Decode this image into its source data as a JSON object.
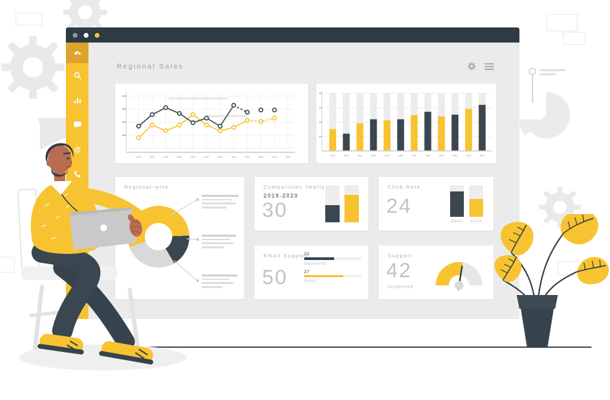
{
  "header": {
    "title": "Regional Sales"
  },
  "window": {
    "controls": [
      {
        "name": "dot-gray",
        "color": "#8F969C"
      },
      {
        "name": "dot-white",
        "color": "#FFFFFF"
      },
      {
        "name": "dot-yellow",
        "color": "#F7C331"
      }
    ]
  },
  "sidebar": {
    "items": [
      {
        "icon": "dashboard-icon",
        "active": true
      },
      {
        "icon": "search-icon",
        "active": false
      },
      {
        "icon": "bar-chart-icon",
        "active": false
      },
      {
        "icon": "chat-icon",
        "active": false
      },
      {
        "icon": "at-icon",
        "active": false
      },
      {
        "icon": "phone-icon",
        "active": false
      },
      {
        "icon": "mail-icon",
        "active": false
      }
    ]
  },
  "panels": {
    "regional_wise": {
      "title": "Regional-wise"
    },
    "comparison": {
      "title": "Comparision Yearly",
      "subtitle": "2019-2020",
      "value": "30"
    },
    "click_rate": {
      "title": "Click Rate",
      "value": "24",
      "labels": [
        "Open",
        "Click"
      ]
    },
    "email_support": {
      "title": "Email Support",
      "value": "50",
      "rows": [
        {
          "value": "23",
          "label": "Delivered"
        },
        {
          "value": "27",
          "label": "Send"
        }
      ]
    },
    "support": {
      "title": "Support",
      "value": "42",
      "subtitle": "Unopened"
    }
  },
  "chart_data": [
    {
      "id": "regional-sales-line",
      "type": "line",
      "x_tick_count": 12,
      "ylim": [
        0,
        4.5
      ],
      "grid": true,
      "series": [
        {
          "name": "series-dark",
          "color": "#3A4750",
          "values": [
            1.9,
            2.9,
            3.5,
            3.0,
            2.2,
            2.6,
            1.9,
            3.7,
            3.1,
            3.3,
            3.3
          ]
        },
        {
          "name": "series-yellow",
          "color": "#F7C331",
          "values": [
            0.9,
            2.0,
            1.5,
            2.0,
            2.9,
            2.0,
            1.5,
            1.8,
            2.4,
            2.3,
            2.6
          ]
        }
      ]
    },
    {
      "id": "monthly-bars",
      "type": "bar",
      "ylim": [
        0,
        100
      ],
      "values": [
        38,
        30,
        48,
        55,
        53,
        55,
        62,
        68,
        60,
        63,
        73,
        80
      ],
      "alternating_colors": [
        "#F7C331",
        "#3A4750"
      ],
      "track_color": "#ECECEC"
    },
    {
      "id": "regional-wise-donut",
      "type": "pie",
      "donut": true,
      "start_angle_deg": 250,
      "slices": [
        {
          "color": "#F7C331",
          "value": 55
        },
        {
          "color": "#3A4750",
          "value": 17
        },
        {
          "color": "#D9D9D9",
          "value": 28
        }
      ]
    },
    {
      "id": "comparison-yearly-bars",
      "type": "bar",
      "categories": [
        "2019",
        "2020"
      ],
      "values": [
        47,
        74
      ],
      "colors": [
        "#3A4750",
        "#F7C331"
      ],
      "ylim": [
        0,
        100
      ]
    },
    {
      "id": "click-rate-bars",
      "type": "bar",
      "categories": [
        "Open",
        "Click"
      ],
      "values": [
        81,
        57
      ],
      "colors": [
        "#3A4750",
        "#F7C331"
      ],
      "ylim": [
        0,
        100
      ]
    },
    {
      "id": "email-progress",
      "type": "bar",
      "categories": [
        "Delivered",
        "Send"
      ],
      "value_labels": [
        "23",
        "27"
      ],
      "percent": [
        52,
        68
      ],
      "colors": [
        "#3A4750",
        "#F7C331"
      ]
    },
    {
      "id": "support-gauge",
      "type": "gauge",
      "value": 55,
      "max": 100,
      "color": "#F7C331",
      "track_color": "#E6E6E6",
      "needle_color": "#3A4750"
    }
  ],
  "colors": {
    "yellow": "#F7C331",
    "slate": "#3A4750",
    "topbar": "#2E3A44",
    "sidebar_active": "#DCA42D",
    "content_bg": "#EBEBEB",
    "muted_text": "#A9AFB4",
    "big_number": "#BFC3C6",
    "decor_gray": "#E9E9E9"
  }
}
